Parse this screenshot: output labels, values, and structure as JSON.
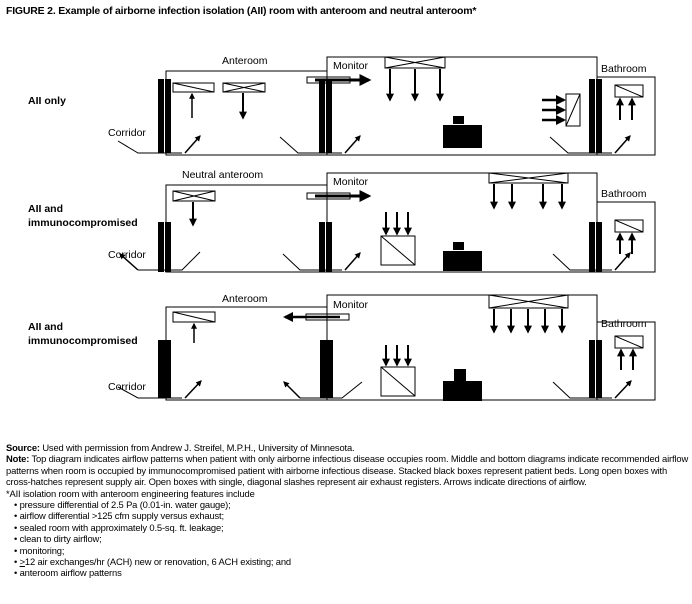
{
  "title": "FIGURE 2. Example of airborne infection isolation (AII) room with anteroom and neutral anteroom*",
  "diagrams": [
    {
      "row_label_1": "AII only",
      "row_label_2": "",
      "anteroom": "Anteroom",
      "monitor": "Monitor",
      "bathroom": "Bathroom",
      "corridor": "Corridor"
    },
    {
      "row_label_1": "AII and",
      "row_label_2": "immunocompromised",
      "anteroom": "Neutral anteroom",
      "monitor": "Monitor",
      "bathroom": "Bathroom",
      "corridor": "Corridor"
    },
    {
      "row_label_1": "AII and",
      "row_label_2": "immunocompromised",
      "anteroom": "Anteroom",
      "monitor": "Monitor",
      "bathroom": "Bathroom",
      "corridor": "Corridor"
    }
  ],
  "notes": {
    "source_label": "Source:",
    "source_text": " Used with permission from Andrew J. Streifel, M.P.H., University of Minnesota.",
    "note_label": "Note:",
    "note_text": " Top diagram indicates airflow patterns when patient with only airborne infectious disease occupies room. Middle and bottom diagrams indicate recommended airflow patterns when room is occupied by immunocompromised patient with airborne infectious disease. Stacked black boxes represent patient beds. Long open boxes with cross-hatches represent supply air. Open boxes with single, diagonal slashes represent air exhaust registers. Arrows indicate directions of airflow.",
    "footnote": "*AII isolation room with anteroom engineering features include",
    "bullets": [
      "pressure differential of 2.5 Pa (0.01-in. water gauge);",
      "airflow differential >125 cfm supply versus exhaust;",
      "sealed room with approximately 0.5-sq. ft. leakage;",
      "clean to dirty airflow;",
      "monitoring;",
      "anteroom airflow patterns"
    ],
    "ach_symbol": ">",
    "ach_text": "12 air exchanges/hr (ACH) new or renovation, 6 ACH existing; and"
  }
}
